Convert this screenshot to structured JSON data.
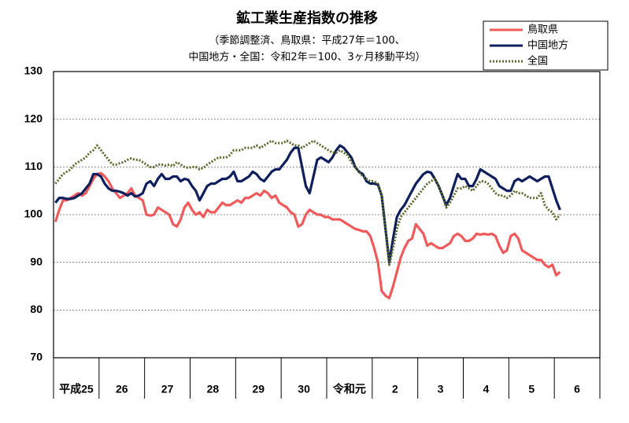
{
  "chart_data": {
    "type": "line",
    "title": "鉱工業生産指数の推移",
    "subtitle": [
      "（季節調整済、鳥取県：平成27年＝100、",
      "中国地方・全国：令和2年＝100、3ヶ月移動平均）"
    ],
    "categories": [
      "平成25",
      null,
      null,
      null,
      null,
      null,
      null,
      null,
      null,
      null,
      null,
      null,
      "26",
      null,
      null,
      null,
      null,
      null,
      null,
      null,
      null,
      null,
      null,
      null,
      "27",
      null,
      null,
      null,
      null,
      null,
      null,
      null,
      null,
      null,
      null,
      null,
      "28",
      null,
      null,
      null,
      null,
      null,
      null,
      null,
      null,
      null,
      null,
      null,
      "29",
      null,
      null,
      null,
      null,
      null,
      null,
      null,
      null,
      null,
      null,
      null,
      "30",
      null,
      null,
      null,
      null,
      null,
      null,
      null,
      null,
      null,
      null,
      null,
      "令和元",
      null,
      null,
      null,
      null,
      null,
      null,
      null,
      null,
      null,
      null,
      null,
      "2",
      null,
      null,
      null,
      null,
      null,
      null,
      null,
      null,
      null,
      null,
      null,
      "3",
      null,
      null,
      null,
      null,
      null,
      null,
      null,
      null,
      null,
      null,
      null,
      "4",
      null,
      null,
      null,
      null,
      null,
      null,
      null,
      null,
      null,
      null,
      null,
      "5",
      null,
      null,
      null,
      null,
      null,
      null,
      null,
      null,
      null,
      null,
      null,
      "6",
      null,
      null,
      null,
      null,
      null,
      null,
      null,
      null,
      null,
      null,
      null
    ],
    "series": [
      {
        "name": "鳥取県",
        "color": "#f05a5a",
        "style": "solid",
        "values": [
          98.5,
          101,
          103,
          103,
          103.5,
          104,
          104.5,
          104,
          104.5,
          106,
          107.5,
          108.5,
          108.7,
          108,
          107,
          105.5,
          104.5,
          103.5,
          104,
          104.5,
          105.5,
          104,
          103.5,
          103,
          100,
          99.8,
          100,
          101.5,
          101,
          100.5,
          100,
          98,
          97.5,
          99,
          101.5,
          102.5,
          101,
          100,
          100.5,
          99.5,
          101,
          100.5,
          100.5,
          101.5,
          102.5,
          102,
          102,
          102.5,
          103,
          102.5,
          103.5,
          103.5,
          104,
          104.5,
          104,
          105,
          104.5,
          103.5,
          104,
          102.5,
          102,
          101.5,
          100.5,
          100,
          97.5,
          98,
          100,
          101,
          100.5,
          100,
          100,
          99.5,
          99.5,
          99,
          99,
          99,
          98.5,
          98,
          97.5,
          97,
          96.8,
          96.5,
          96.5,
          95.5,
          93,
          90,
          84,
          83,
          82.5,
          85,
          88,
          91,
          93,
          94.5,
          95,
          98,
          97,
          96,
          93.5,
          94,
          93.5,
          93,
          93,
          93.5,
          94,
          95.5,
          96,
          95.5,
          94.5,
          94.5,
          95,
          96,
          95.8,
          96,
          95.8,
          96,
          95.5,
          93.5,
          92,
          92.5,
          95.5,
          96,
          95,
          92.5,
          92,
          91.5,
          91,
          90.5,
          90.5,
          89.5,
          89,
          89.5,
          87.3,
          88,
          null,
          null,
          null,
          null,
          null,
          null,
          null,
          null,
          null,
          null
        ]
      },
      {
        "name": "中国地方",
        "color": "#0f1f5c",
        "style": "solid",
        "values": [
          102.5,
          103.5,
          103.5,
          103.3,
          103.3,
          103.5,
          104,
          104.5,
          105.5,
          106.5,
          108.5,
          108.5,
          108,
          106.5,
          105.5,
          105,
          105,
          104.8,
          104.5,
          104,
          104.5,
          103.8,
          104,
          104.5,
          106.5,
          107,
          106,
          107.5,
          108.5,
          107.5,
          107.5,
          108,
          108,
          107,
          107.5,
          107.3,
          106,
          105,
          103,
          104.5,
          106,
          106.5,
          106.5,
          107,
          107.5,
          107.5,
          108,
          109,
          107,
          107,
          107.5,
          108,
          109,
          108.5,
          107.5,
          107,
          108,
          109,
          109.5,
          109.5,
          110.5,
          111.5,
          113,
          114,
          114,
          110,
          106,
          104.5,
          108,
          111.5,
          112,
          111.5,
          111,
          112,
          113.5,
          114.5,
          114,
          113,
          112,
          110,
          109,
          108.5,
          107,
          106.5,
          106.5,
          106.3,
          104,
          97,
          90,
          95,
          99.5,
          101,
          102,
          103.5,
          105,
          106.5,
          107.5,
          108.5,
          109,
          108.8,
          107.5,
          106,
          104,
          102,
          103.5,
          106,
          108.5,
          107.5,
          107.5,
          106,
          106,
          107.5,
          109.5,
          109,
          108.5,
          108,
          107.5,
          106,
          105.5,
          105,
          105,
          107,
          107.5,
          107,
          107.5,
          108,
          107.5,
          107,
          107.5,
          108,
          108,
          105.5,
          103,
          101,
          null,
          null,
          null,
          null,
          null,
          null,
          null,
          null,
          null,
          null
        ]
      },
      {
        "name": "全国",
        "color": "#5a6a2a",
        "style": "dotted",
        "values": [
          106.5,
          107.5,
          108.5,
          109,
          109.5,
          110.5,
          111,
          111.5,
          112,
          113,
          113.5,
          114.5,
          113.5,
          112.5,
          111.5,
          110.5,
          110.5,
          110.8,
          111,
          111.5,
          111.8,
          111.5,
          111.5,
          111,
          110.5,
          110,
          110,
          110.5,
          110.5,
          110.3,
          110.5,
          110.2,
          111,
          110.5,
          110,
          109.8,
          110,
          110,
          109.5,
          109.8,
          110.5,
          111,
          111.5,
          112,
          112,
          112,
          112.5,
          113.5,
          113.5,
          113.5,
          114,
          114,
          114,
          114.5,
          114,
          114.5,
          115,
          115.5,
          115,
          115,
          115,
          115.5,
          115,
          114.5,
          114.5,
          114,
          114.5,
          115,
          115.5,
          115,
          114.5,
          114,
          113.5,
          113,
          113,
          113.5,
          113,
          112.5,
          111,
          110,
          109,
          108,
          107.5,
          107,
          107,
          106.5,
          104,
          97,
          89.5,
          93,
          97,
          99.5,
          100.5,
          101.5,
          102.5,
          103.5,
          104.5,
          105.5,
          106.5,
          107,
          107.5,
          106,
          104,
          101.5,
          102.5,
          104,
          105.5,
          105.5,
          106,
          105.5,
          105,
          106,
          107,
          107,
          106.5,
          105.5,
          104.5,
          104,
          104,
          103.5,
          104,
          105,
          104.5,
          104.5,
          104,
          103.5,
          103.5,
          103.5,
          104.5,
          102,
          101,
          100.5,
          99,
          100,
          null,
          null,
          null,
          null,
          null,
          null,
          null,
          null,
          null,
          null
        ]
      }
    ],
    "ylim": [
      70,
      130
    ],
    "yticks": [
      70,
      80,
      90,
      100,
      110,
      120,
      130
    ],
    "grid": true,
    "legend": "upper right"
  }
}
